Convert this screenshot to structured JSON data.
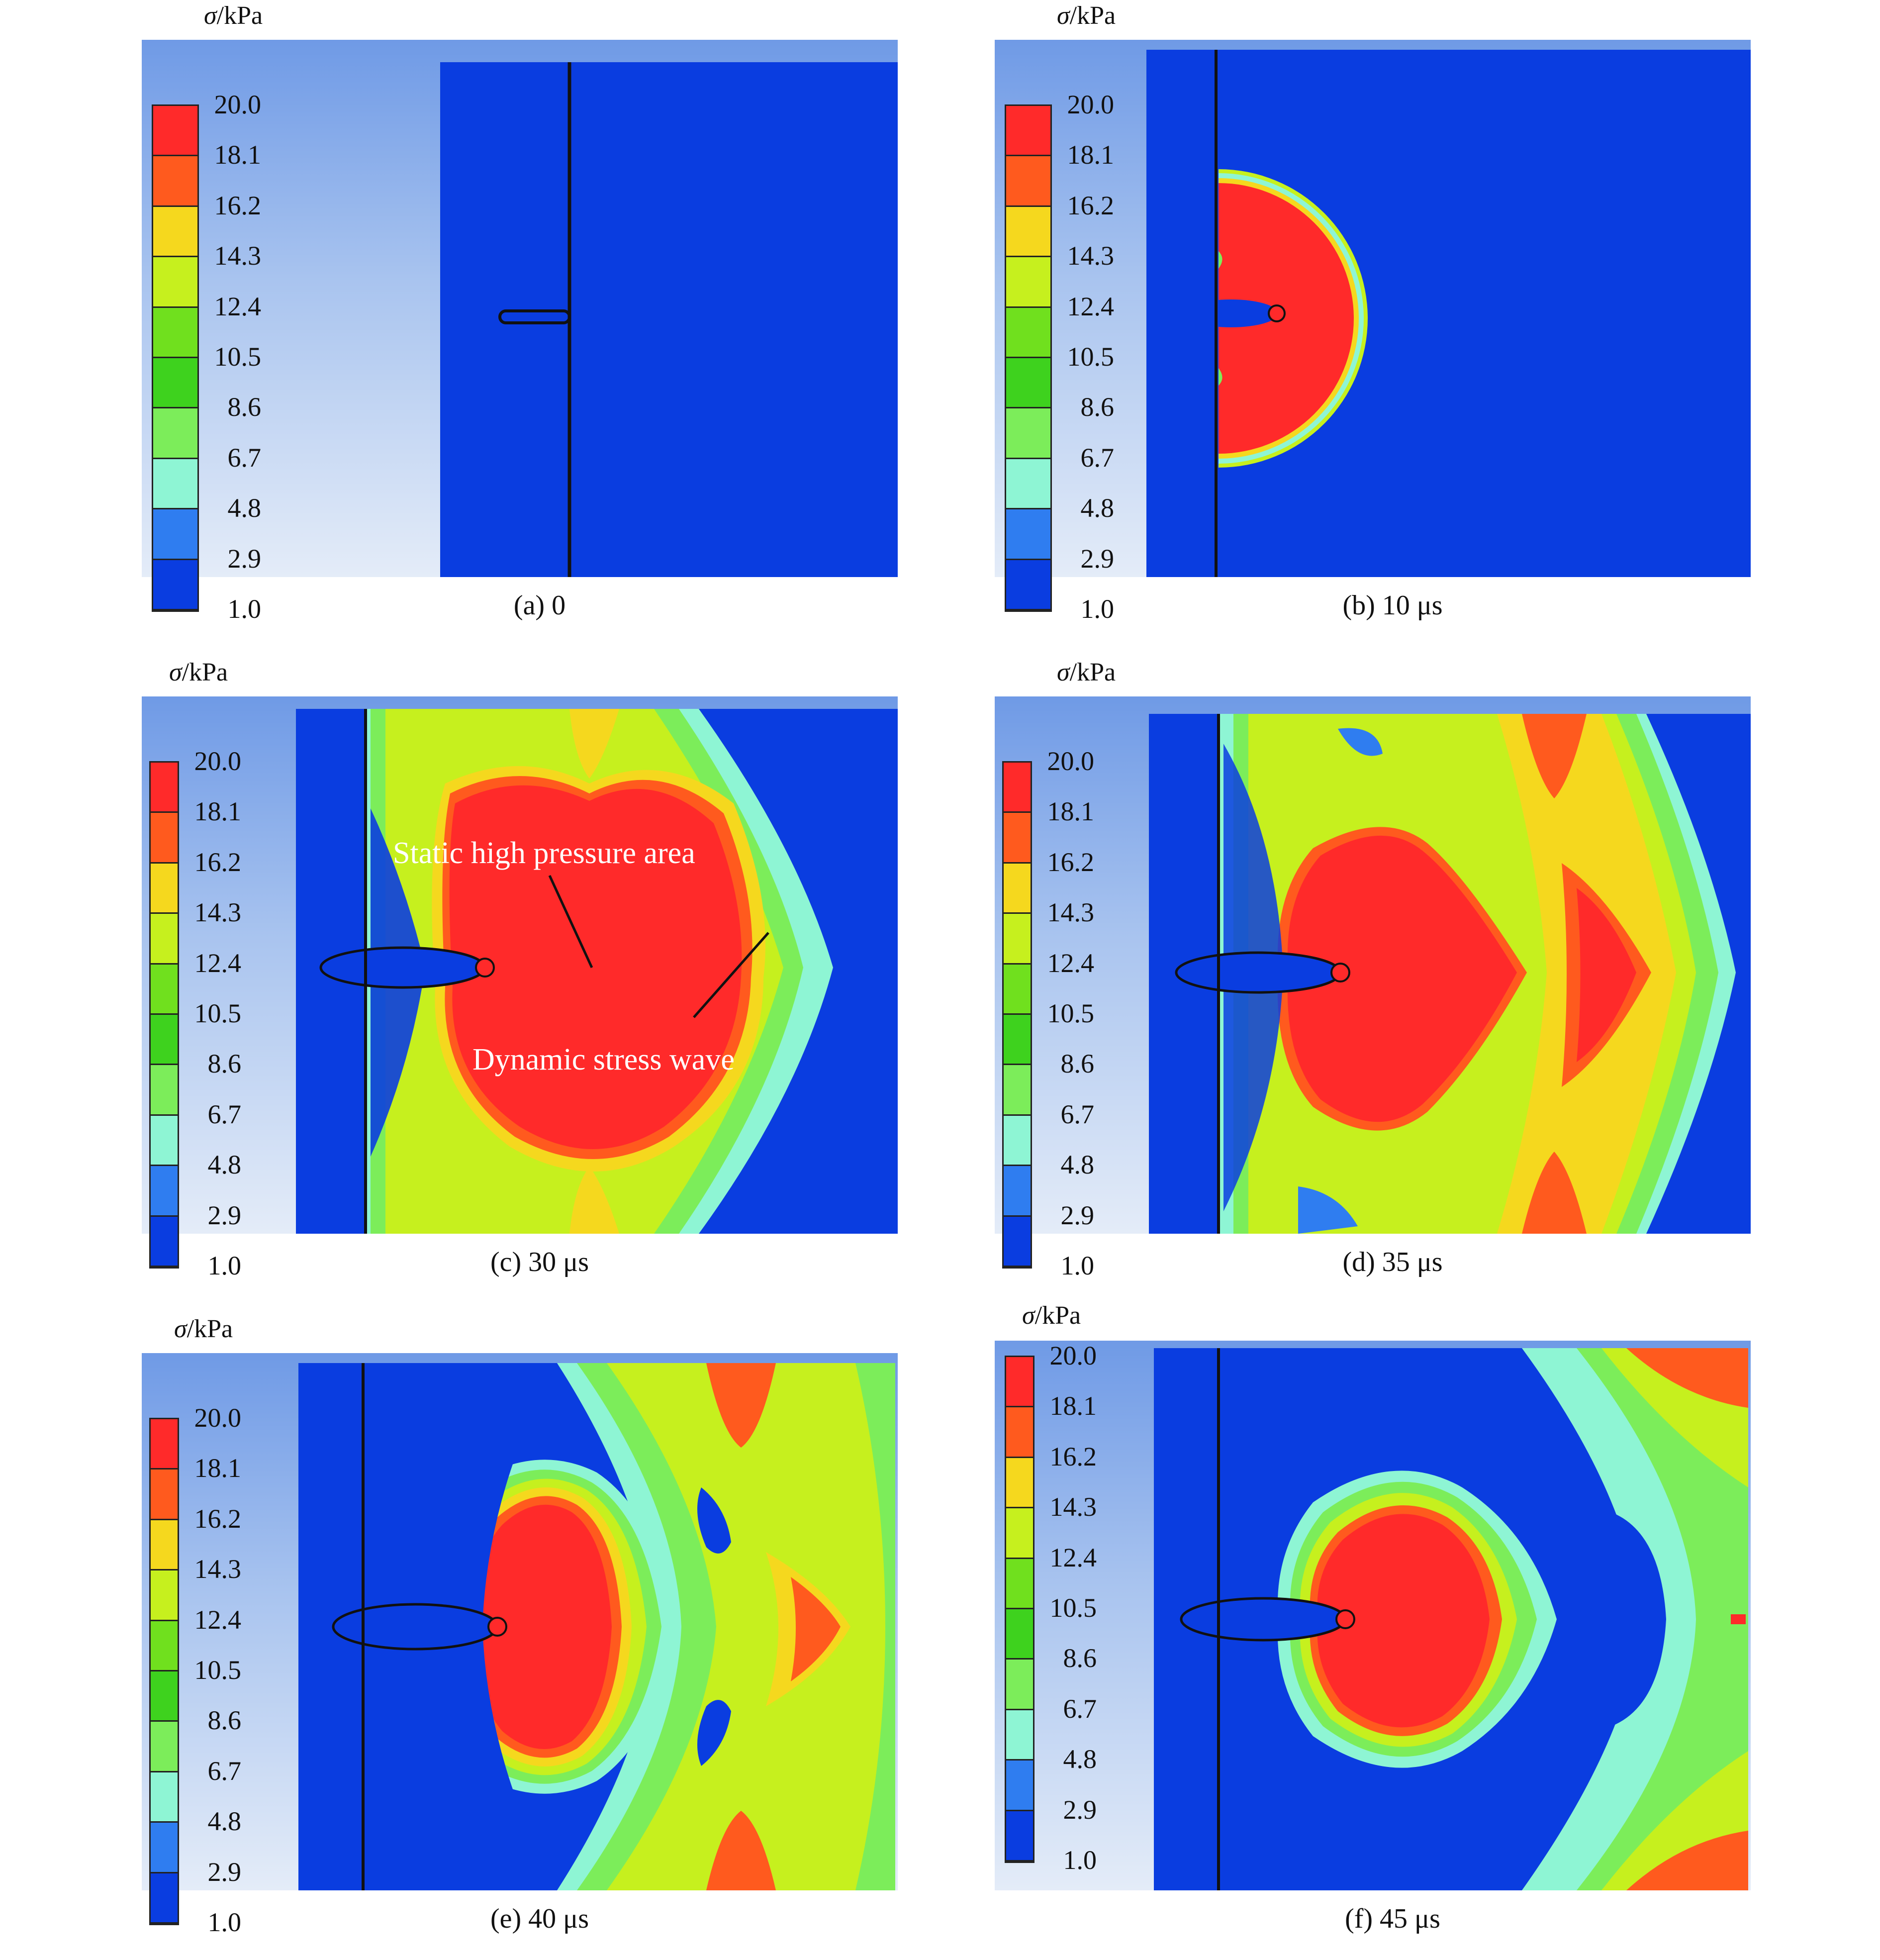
{
  "legend": {
    "unit_symbol": "σ",
    "unit_rest": "/kPa",
    "levels": [
      "20.0",
      "18.1",
      "16.2",
      "14.3",
      "12.4",
      "10.5",
      "8.6",
      "6.7",
      "4.8",
      "2.9",
      "1.0"
    ],
    "band_colors": [
      "#ff2a2a",
      "#ff5a1e",
      "#f5d81e",
      "#c6f01e",
      "#70e01e",
      "#3ed21e",
      "#7ced5a",
      "#8ef5d4",
      "#2f7df0",
      "#0a3de0"
    ]
  },
  "panels": [
    {
      "id": "a",
      "caption": "(a) 0"
    },
    {
      "id": "b",
      "caption": "(b) 10 μs"
    },
    {
      "id": "c",
      "caption": "(c) 30 μs"
    },
    {
      "id": "d",
      "caption": "(d) 35 μs"
    },
    {
      "id": "e",
      "caption": "(e) 40 μs"
    },
    {
      "id": "f",
      "caption": "(f) 45 μs"
    }
  ],
  "annotations": {
    "static": "Static high pressure area",
    "dynamic": "Dynamic stress wave"
  }
}
